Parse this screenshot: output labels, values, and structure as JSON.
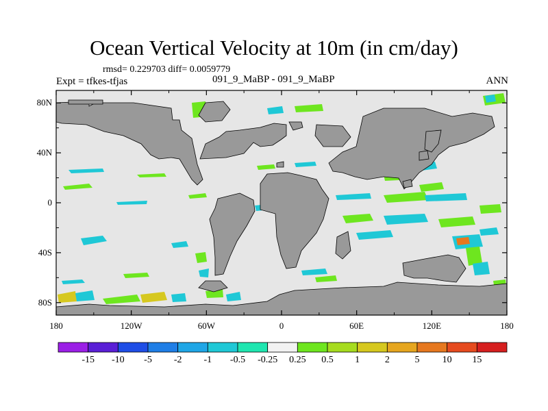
{
  "title": "Ocean Vertical Velocity at 10m (in cm/day)",
  "stats": "rmsd= 0.229703 diff= 0.0059779",
  "expt": "Expt = tfkes-tfjas",
  "subtitle": "091_9_MaBP - 091_9_MaBP",
  "season": "ANN",
  "map": {
    "projection": "cylindrical-equidistant",
    "lon_range": [
      -180,
      180
    ],
    "lat_range": [
      -90,
      90
    ],
    "background_color": "#e6e6e6",
    "land_color": "#999999",
    "y_ticks": [
      {
        "value": 80,
        "label": "80N"
      },
      {
        "value": 40,
        "label": "40N"
      },
      {
        "value": 0,
        "label": "0"
      },
      {
        "value": -40,
        "label": "40S"
      },
      {
        "value": -80,
        "label": "80S"
      }
    ],
    "x_ticks": [
      {
        "value": -180,
        "label": "180"
      },
      {
        "value": -120,
        "label": "120W"
      },
      {
        "value": -60,
        "label": "60W"
      },
      {
        "value": 0,
        "label": "0"
      },
      {
        "value": 60,
        "label": "60E"
      },
      {
        "value": 120,
        "label": "120E"
      },
      {
        "value": 180,
        "label": "180"
      }
    ]
  },
  "colorbar": {
    "labels": [
      "-15",
      "-10",
      "-5",
      "-2",
      "-1",
      "-0.5",
      "-0.25",
      "0.25",
      "0.5",
      "1",
      "2",
      "5",
      "10",
      "15"
    ],
    "colors": [
      "#9b1fe6",
      "#5a1fd6",
      "#1f4ee6",
      "#1f7ee6",
      "#1fa6e6",
      "#1fc8d6",
      "#1fe6b0",
      "#f2f2f2",
      "#6ee61f",
      "#a6dc1f",
      "#d6c81f",
      "#e6a61f",
      "#e6781f",
      "#e64b1f",
      "#d61f1f"
    ]
  }
}
